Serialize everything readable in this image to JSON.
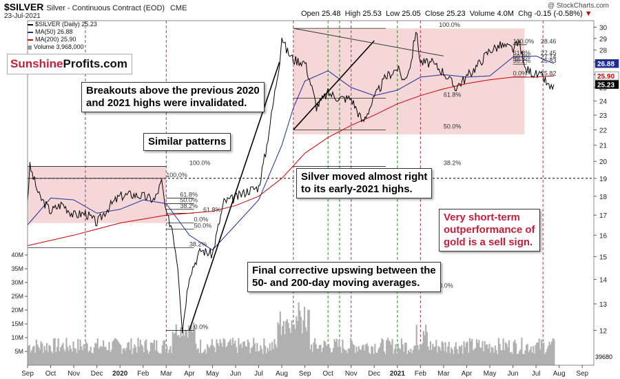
{
  "header": {
    "symbol": "$SILVER",
    "description": "Silver - Continuous Contract (EOD)",
    "exchange": "CME",
    "date": "23-Jul-2021",
    "open_label": "Open",
    "open": "25.48",
    "high_label": "High",
    "high": "25.53",
    "low_label": "Low",
    "low": "25.05",
    "close_label": "Close",
    "close": "25.23",
    "volume_label": "Volume",
    "volume": "4.0M",
    "chg_label": "Chg",
    "chg": "-0.15 (-0.58%)",
    "watermark": "@ StockCharts.com"
  },
  "legend": {
    "price": "$SILVER (Daily) 25.23",
    "ma50": "MA(50) 26.88",
    "ma200": "MA(200) 25.90",
    "volume": "Volume 3,968,000"
  },
  "logo": {
    "part1": "Sunshine",
    "part2": "Profits.com"
  },
  "callouts": {
    "c1_line1": "Breakouts above the previous 2020",
    "c1_line2": "and 2021 highs were invalidated.",
    "c2": "Similar patterns",
    "c3_line1": "Silver moved almost right",
    "c3_line2": "to its early-2021 highs.",
    "c4_line1": "Final corrective upswing between the",
    "c4_line2": "50- and 200-day moving averages.",
    "c5_line1": "Very short-term",
    "c5_line2": "outperformance of",
    "c5_line3": "gold is a sell sign."
  },
  "colors": {
    "price": "#000000",
    "ma50": "#1c2c9c",
    "ma200": "#cc0000",
    "zone_fill": "#f2c9c9",
    "volume_bar": "#b0b0b0",
    "callout_red": "#c41e3a",
    "vline_red": "#b03060",
    "vline_green": "#2a8a2a"
  },
  "chart_data": {
    "type": "line",
    "title": "$SILVER",
    "ylim": [
      10.8,
      30.6
    ],
    "y_ticks": [
      12,
      13,
      14,
      15,
      16,
      17,
      18,
      19,
      20,
      21,
      22,
      23,
      24,
      25,
      26,
      27,
      28,
      29,
      30
    ],
    "x_ticks": [
      "Sep",
      "Oct",
      "Nov",
      "Dec",
      "2020",
      "Feb",
      "Mar",
      "Apr",
      "May",
      "Jun",
      "Jul",
      "Aug",
      "Sep",
      "Oct",
      "Nov",
      "Dec",
      "2021",
      "Feb",
      "Mar",
      "Apr",
      "May",
      "Jun",
      "Jul",
      "Aug",
      "Sep"
    ],
    "x_tick_months": [
      0,
      1,
      2,
      3,
      4,
      5,
      6,
      7,
      8,
      9,
      10,
      11,
      12,
      13,
      14,
      15,
      16,
      17,
      18,
      19,
      20,
      21,
      22,
      23,
      24
    ],
    "series": [
      {
        "name": "$SILVER (Daily)",
        "x": [
          0,
          0.1,
          0.5,
          1,
          1.5,
          2,
          2.5,
          3,
          3.5,
          4,
          4.5,
          5,
          5.5,
          5.8,
          6,
          6.25,
          6.5,
          6.7,
          7,
          7.5,
          8,
          8.5,
          9,
          9.5,
          10,
          10.3,
          10.6,
          10.9,
          11,
          11.2,
          11.5,
          12,
          12.5,
          13,
          13.5,
          14,
          14.5,
          15,
          15.5,
          16,
          16.3,
          16.6,
          16.8,
          17,
          17.5,
          18,
          18.5,
          19,
          19.5,
          20,
          20.5,
          21,
          21.3,
          21.5,
          22,
          22.3,
          22.6,
          22.77
        ],
        "values": [
          17.8,
          19.7,
          18.0,
          17.2,
          17.6,
          17.0,
          17.1,
          16.6,
          17.4,
          18.0,
          18.1,
          18.0,
          17.8,
          18.8,
          17.0,
          16.4,
          14.6,
          12.0,
          14.2,
          15.3,
          15.1,
          17.7,
          17.9,
          18.3,
          18.5,
          20.5,
          23.5,
          27.0,
          29.2,
          28.0,
          27.2,
          27.0,
          23.6,
          24.6,
          24.2,
          24.2,
          22.5,
          24.2,
          25.8,
          26.5,
          25.5,
          27.0,
          29.8,
          27.0,
          26.9,
          26.2,
          25.0,
          25.8,
          26.8,
          28.0,
          28.4,
          28.1,
          28.6,
          26.5,
          26.0,
          25.8,
          24.9,
          25.23
        ]
      },
      {
        "name": "MA(50)",
        "x": [
          0,
          1,
          2,
          3,
          4,
          5,
          6,
          7,
          8,
          9,
          10,
          11,
          11.5,
          12,
          13,
          14,
          15,
          16,
          17,
          18,
          19,
          20,
          21,
          22,
          22.77
        ],
        "values": [
          16.5,
          17.9,
          17.8,
          17.1,
          17.3,
          17.8,
          17.6,
          16.0,
          15.3,
          16.5,
          17.8,
          21.0,
          23.5,
          25.5,
          26.3,
          25.0,
          24.4,
          24.8,
          25.8,
          26.0,
          25.8,
          25.9,
          27.4,
          27.5,
          26.88
        ]
      },
      {
        "name": "MA(200)",
        "x": [
          0,
          2,
          4,
          6,
          7,
          8,
          9,
          10,
          11,
          12,
          13,
          14,
          15,
          16,
          17,
          18,
          19,
          20,
          21,
          22,
          22.77
        ],
        "values": [
          15.5,
          16.0,
          16.6,
          17.0,
          17.1,
          17.2,
          17.5,
          18.0,
          19.0,
          20.5,
          21.5,
          22.3,
          23.0,
          23.8,
          24.4,
          24.9,
          25.3,
          25.6,
          25.8,
          25.8,
          25.9
        ]
      }
    ],
    "volume": {
      "max_label": "40M",
      "ticks": [
        "5M",
        "10M",
        "15M",
        "20M",
        "25M",
        "30M",
        "35M",
        "40M"
      ],
      "last": "39680"
    },
    "price_labels": {
      "ma50": "26.88",
      "ma200": "25.90",
      "close": "25.23"
    },
    "fib_levels": [
      {
        "label": "100.0%",
        "price": 19.7
      },
      {
        "label": "100.0%",
        "price": 19.0
      },
      {
        "label": "61.8%",
        "price": 17.9
      },
      {
        "label": "50.0%",
        "price": 17.6
      },
      {
        "label": "38.2%",
        "price": 17.3
      },
      {
        "label": "61.8%",
        "price": 17.1
      },
      {
        "label": "0.0%",
        "price": 16.6
      },
      {
        "label": "50.0%",
        "price": 16.3
      },
      {
        "label": "38.2%",
        "price": 15.4
      },
      {
        "label": "0.0%",
        "price": 12.0
      },
      {
        "label": "100.0%",
        "price": 29.9
      },
      {
        "label": "61.8%",
        "price": 24.2
      },
      {
        "label": "50.0%",
        "price": 22.0
      },
      {
        "label": "38.2%",
        "price": 19.7
      },
      {
        "label": "0.0%",
        "price": 13.6
      },
      {
        "label": "100.0%",
        "price": 28.46
      },
      {
        "label": "61.8%",
        "price": 27.45
      },
      {
        "label": "50.0%",
        "price": 27.14
      },
      {
        "label": "38.2%",
        "price": 26.83
      },
      {
        "label": "0.0%",
        "price": 25.82
      }
    ],
    "fib_value_labels": [
      "28.46",
      "27.45",
      "27.14",
      "26.83",
      "25.82"
    ],
    "reference_line": 19.0,
    "annotation_months_red": [
      2.5,
      6.0,
      11.5,
      14.0,
      17.0,
      22.3
    ],
    "annotation_months_green": [
      13.0,
      13.5,
      16.0
    ],
    "zones": [
      {
        "x0": 0,
        "x1": 6.0,
        "y0": 16.6,
        "y1": 19.7
      },
      {
        "x0": 11.5,
        "x1": 21.5,
        "y0": 21.7,
        "y1": 29.9
      }
    ]
  }
}
